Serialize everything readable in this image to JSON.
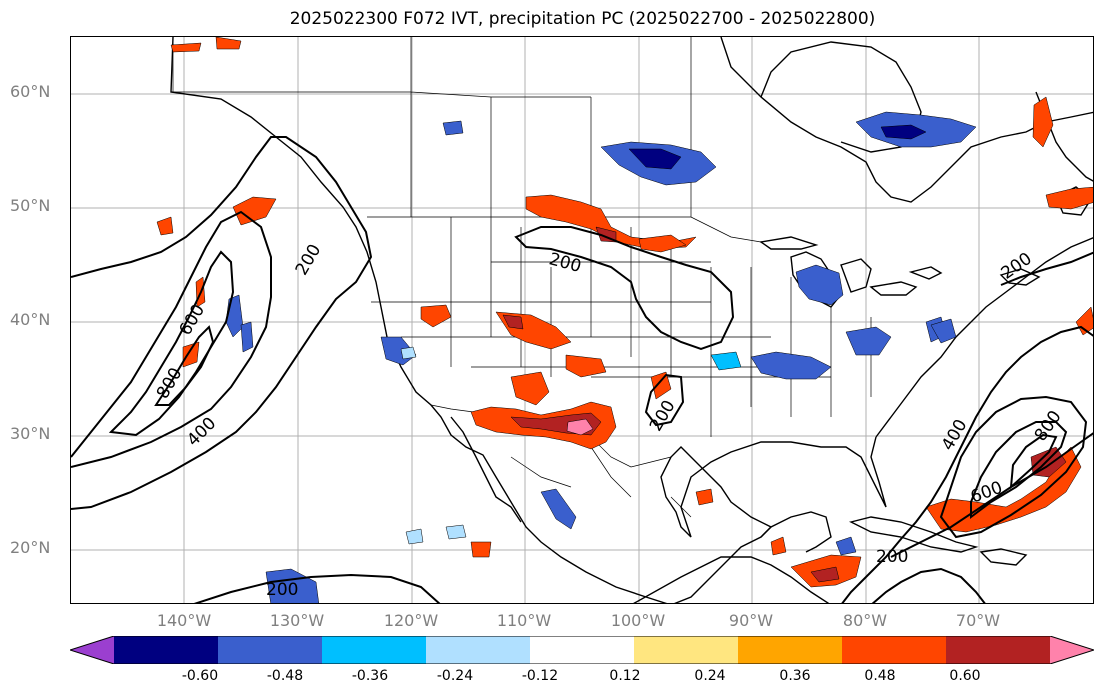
{
  "title": "2025022300 F072 IVT, precipitation PC (2025022700 - 2025022800)",
  "lat_labels": [
    "60°N",
    "50°N",
    "40°N",
    "30°N",
    "20°N"
  ],
  "lon_labels": [
    "140°W",
    "130°W",
    "120°W",
    "110°W",
    "100°W",
    "90°W",
    "80°W",
    "70°W"
  ],
  "contour_labels": [
    "200",
    "600",
    "800",
    "400",
    "200",
    "200",
    "200",
    "400",
    "600",
    "800",
    "200",
    "200"
  ],
  "colorbar": {
    "ticks": [
      "-0.60",
      "-0.48",
      "-0.36",
      "-0.24",
      "-0.12",
      "0.12",
      "0.24",
      "0.36",
      "0.48",
      "0.60"
    ],
    "colors": [
      "#9b3fd0",
      "#000080",
      "#3a5fcd",
      "#00bfff",
      "#b0e0ff",
      "#ffffff",
      "#ffe680",
      "#ffa500",
      "#ff4500",
      "#b22222",
      "#ff82ab"
    ]
  },
  "legend_semantics": {
    "field_contours": "IVT",
    "shading": "precipitation PC"
  }
}
